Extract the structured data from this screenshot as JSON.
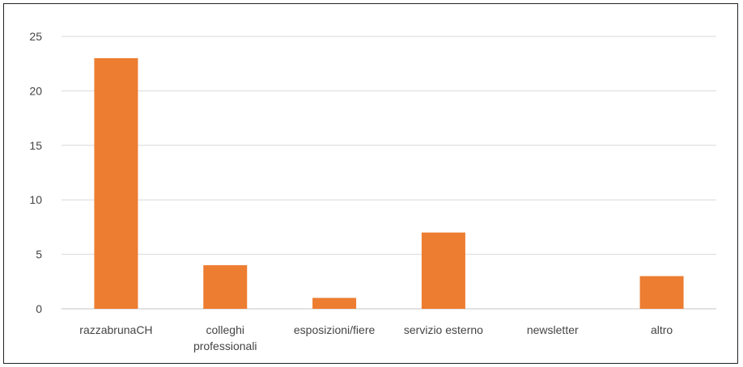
{
  "chart_data": {
    "type": "bar",
    "categories": [
      [
        "razzabrunaCH"
      ],
      [
        "colleghi",
        "professionali"
      ],
      [
        "esposizioni/fiere"
      ],
      [
        "servizio esterno"
      ],
      [
        "newsletter"
      ],
      [
        "altro"
      ]
    ],
    "values": [
      23,
      4,
      1,
      7,
      0,
      3
    ],
    "ylim": [
      0,
      25
    ],
    "yticks": [
      0,
      5,
      10,
      15,
      20,
      25
    ],
    "grid": true,
    "legend": "none",
    "bar_color": "#ED7D31",
    "title": "",
    "xlabel": "",
    "ylabel": ""
  }
}
